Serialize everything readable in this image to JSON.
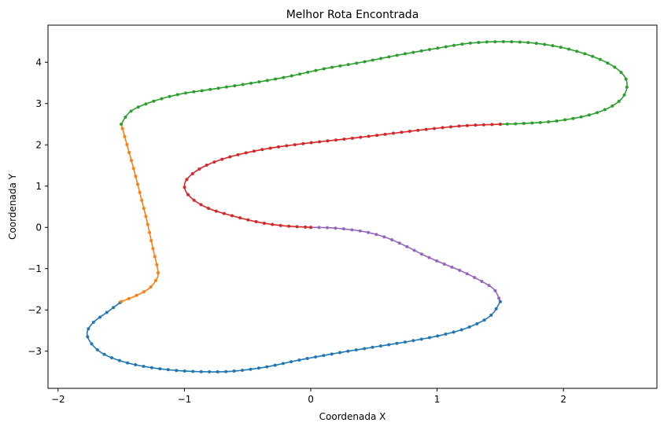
{
  "chart_data": {
    "type": "line",
    "title": "Melhor Rota Encontrada",
    "xlabel": "Coordenada X",
    "ylabel": "Coordenada Y",
    "xlim": [
      -2.08,
      2.74
    ],
    "ylim": [
      -3.9,
      4.9
    ],
    "xticks": [
      -2,
      -1,
      0,
      1,
      2
    ],
    "yticks": [
      -3,
      -2,
      -1,
      0,
      1,
      2,
      3,
      4
    ],
    "xtick_labels": [
      "−2",
      "−1",
      "0",
      "1",
      "2"
    ],
    "ytick_labels": [
      "−3",
      "−2",
      "−1",
      "0",
      "1",
      "2",
      "3",
      "4"
    ],
    "grid": false,
    "legend": "none",
    "series": [
      {
        "color": "#9467bd",
        "points": [
          [
            0,
            0
          ],
          [
            0.15,
            -0.01
          ],
          [
            0.3,
            -0.05
          ],
          [
            0.45,
            -0.12
          ],
          [
            0.6,
            -0.25
          ],
          [
            0.75,
            -0.45
          ],
          [
            0.9,
            -0.68
          ],
          [
            1.05,
            -0.88
          ],
          [
            1.2,
            -1.07
          ],
          [
            1.33,
            -1.27
          ],
          [
            1.45,
            -1.5
          ],
          [
            1.5,
            -1.8
          ]
        ]
      },
      {
        "color": "#1f77b4",
        "points": [
          [
            1.5,
            -1.8
          ],
          [
            1.42,
            -2.15
          ],
          [
            1.25,
            -2.42
          ],
          [
            1.05,
            -2.6
          ],
          [
            0.8,
            -2.75
          ],
          [
            0.5,
            -2.9
          ],
          [
            0.2,
            -3.05
          ],
          [
            -0.1,
            -3.22
          ],
          [
            -0.35,
            -3.38
          ],
          [
            -0.6,
            -3.48
          ],
          [
            -0.8,
            -3.5
          ],
          [
            -1.05,
            -3.47
          ],
          [
            -1.3,
            -3.38
          ],
          [
            -1.5,
            -3.24
          ],
          [
            -1.65,
            -3.05
          ],
          [
            -1.74,
            -2.8
          ],
          [
            -1.77,
            -2.55
          ],
          [
            -1.72,
            -2.3
          ],
          [
            -1.6,
            -2.03
          ],
          [
            -1.5,
            -1.8
          ]
        ]
      },
      {
        "color": "#ff7f0e",
        "points": [
          [
            -1.5,
            -1.8
          ],
          [
            -1.38,
            -1.65
          ],
          [
            -1.28,
            -1.48
          ],
          [
            -1.22,
            -1.25
          ],
          [
            -1.21,
            -1.05
          ],
          [
            -1.25,
            -0.5
          ],
          [
            -1.3,
            0.2
          ],
          [
            -1.35,
            0.8
          ],
          [
            -1.4,
            1.4
          ],
          [
            -1.45,
            1.95
          ],
          [
            -1.5,
            2.5
          ]
        ]
      },
      {
        "color": "#2ca02c",
        "points": [
          [
            -1.5,
            2.5
          ],
          [
            -1.43,
            2.8
          ],
          [
            -1.28,
            3.02
          ],
          [
            -1.05,
            3.22
          ],
          [
            -0.8,
            3.34
          ],
          [
            -0.5,
            3.48
          ],
          [
            -0.2,
            3.64
          ],
          [
            0.1,
            3.84
          ],
          [
            0.4,
            4.0
          ],
          [
            0.7,
            4.18
          ],
          [
            1.0,
            4.34
          ],
          [
            1.25,
            4.46
          ],
          [
            1.5,
            4.5
          ],
          [
            1.75,
            4.47
          ],
          [
            2.0,
            4.35
          ],
          [
            2.25,
            4.12
          ],
          [
            2.42,
            3.85
          ],
          [
            2.5,
            3.55
          ],
          [
            2.48,
            3.2
          ],
          [
            2.38,
            2.93
          ],
          [
            2.2,
            2.72
          ],
          [
            1.95,
            2.58
          ],
          [
            1.7,
            2.52
          ],
          [
            1.5,
            2.5
          ]
        ]
      },
      {
        "color": "#d62728",
        "points": [
          [
            1.5,
            2.5
          ],
          [
            1.2,
            2.46
          ],
          [
            0.9,
            2.37
          ],
          [
            0.6,
            2.26
          ],
          [
            0.3,
            2.15
          ],
          [
            0.0,
            2.05
          ],
          [
            -0.3,
            1.93
          ],
          [
            -0.55,
            1.78
          ],
          [
            -0.75,
            1.6
          ],
          [
            -0.9,
            1.38
          ],
          [
            -0.99,
            1.12
          ],
          [
            -0.99,
            0.88
          ],
          [
            -0.92,
            0.65
          ],
          [
            -0.8,
            0.45
          ],
          [
            -0.62,
            0.28
          ],
          [
            -0.42,
            0.13
          ],
          [
            -0.22,
            0.04
          ],
          [
            0,
            0
          ]
        ]
      }
    ]
  }
}
